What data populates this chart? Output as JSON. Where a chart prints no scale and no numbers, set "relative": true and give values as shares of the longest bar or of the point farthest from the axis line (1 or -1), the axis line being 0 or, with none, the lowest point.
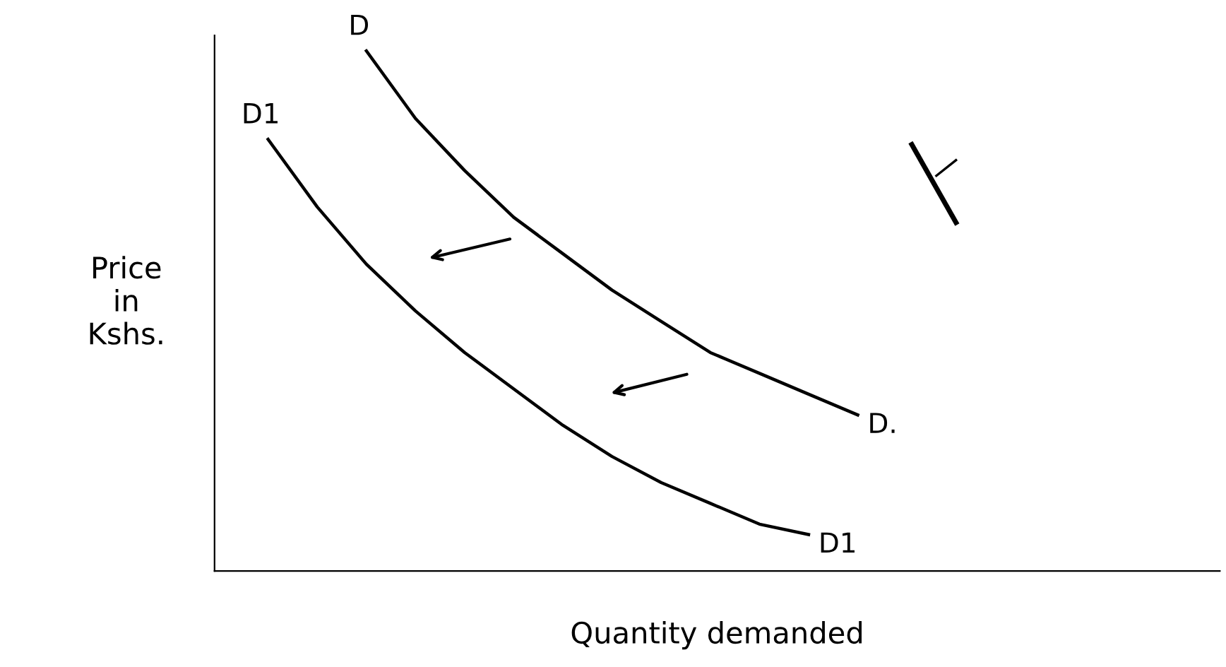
{
  "chart_data": {
    "type": "line",
    "relative": true,
    "xlabel": "Quantity demanded",
    "ylabel": "Price\nin\nKshs.",
    "categories": [
      null,
      null,
      null,
      null,
      null,
      null,
      null,
      null,
      null,
      null,
      null,
      null,
      null
    ],
    "series": [
      {
        "name": "D",
        "color": "#000000",
        "values": [
          null,
          null,
          1.0,
          0.87,
          0.77,
          0.68,
          0.61,
          0.54,
          0.48,
          0.42,
          0.38,
          0.34,
          0.3
        ]
      },
      {
        "name": "D1",
        "color": "#000000",
        "values": [
          0.83,
          0.7,
          0.59,
          0.5,
          0.42,
          0.35,
          0.28,
          0.22,
          0.17,
          0.13,
          0.09,
          0.07,
          null
        ]
      }
    ],
    "annotations": [
      "D.",
      "D1"
    ],
    "marker": "none",
    "line_style": "solid",
    "grid": false,
    "legend": false
  }
}
